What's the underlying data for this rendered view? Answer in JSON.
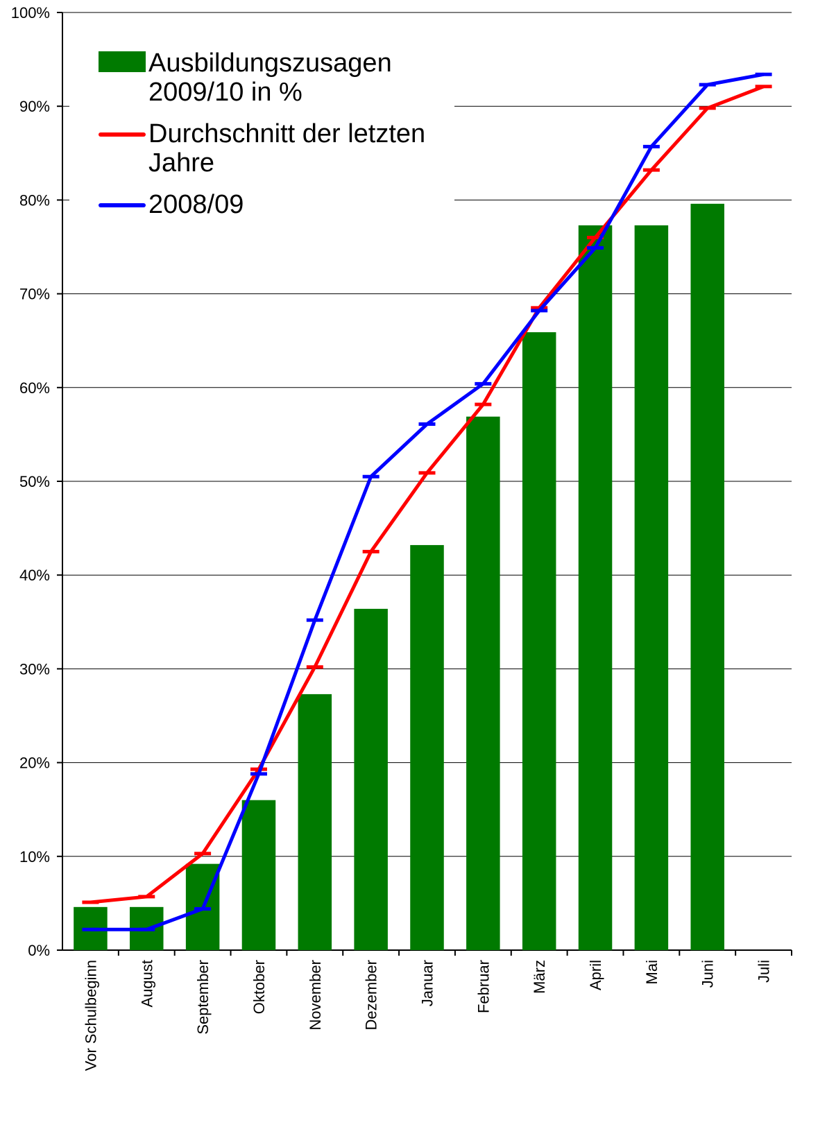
{
  "chart_data": {
    "type": "bar-line",
    "categories": [
      "Vor Schulbeginn",
      "August",
      "September",
      "Oktober",
      "November",
      "Dezember",
      "Januar",
      "Februar",
      "März",
      "April",
      "Mai",
      "Juni",
      "Juli"
    ],
    "series": [
      {
        "name": "Ausbildungszusagen 2009/10 in %",
        "type": "bar",
        "color": "#007a00",
        "values": [
          4.6,
          4.6,
          9.2,
          16.0,
          27.3,
          36.4,
          43.2,
          56.9,
          65.9,
          77.3,
          77.3,
          79.6,
          null
        ]
      },
      {
        "name": "Durchschnitt der letzten Jahre",
        "type": "line",
        "color": "#ff0000",
        "values": [
          5.1,
          5.7,
          10.3,
          19.3,
          30.2,
          42.5,
          50.9,
          58.2,
          68.5,
          76.0,
          83.2,
          89.8,
          92.1
        ]
      },
      {
        "name": "2008/09",
        "type": "line",
        "color": "#0000ff",
        "values": [
          2.2,
          2.2,
          4.4,
          18.8,
          35.2,
          50.5,
          56.1,
          60.4,
          68.2,
          74.9,
          85.7,
          92.3,
          93.4
        ]
      }
    ],
    "ylim": [
      0,
      100
    ],
    "yticks": [
      {
        "value": 0,
        "label": "0%"
      },
      {
        "value": 10,
        "label": "10%"
      },
      {
        "value": 20,
        "label": "20%"
      },
      {
        "value": 30,
        "label": "30%"
      },
      {
        "value": 40,
        "label": "40%"
      },
      {
        "value": 50,
        "label": "50%"
      },
      {
        "value": 60,
        "label": "60%"
      },
      {
        "value": 70,
        "label": "70%"
      },
      {
        "value": 80,
        "label": "80%"
      },
      {
        "value": 90,
        "label": "90%"
      },
      {
        "value": 100,
        "label": "100%"
      }
    ],
    "grid": true,
    "legend": "upper left"
  }
}
